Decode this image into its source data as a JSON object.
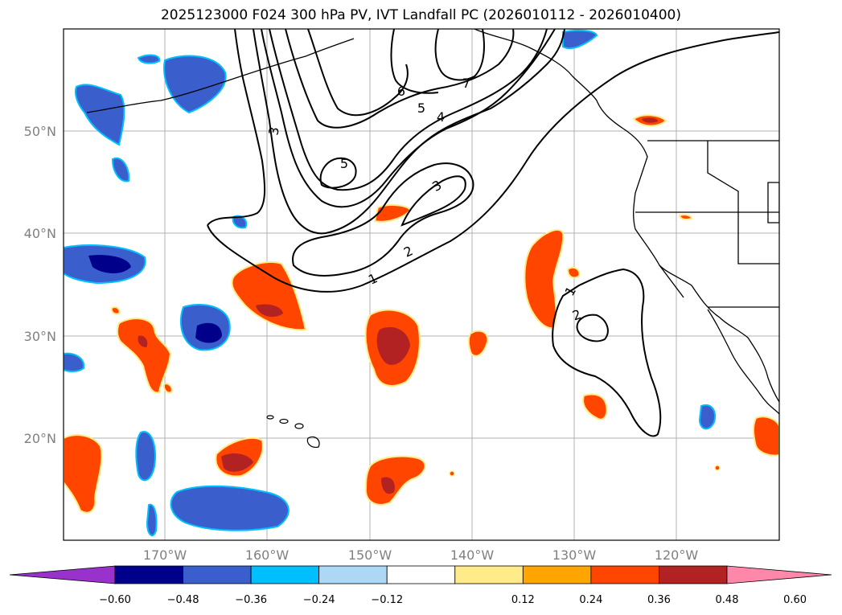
{
  "title": "2025123000 F024 300 hPa PV, IVT Landfall PC (2026010112 - 2026010400)",
  "lat_labels": [
    "50°N",
    "40°N",
    "30°N",
    "20°N"
  ],
  "lon_labels": [
    "170°W",
    "160°W",
    "150°W",
    "140°W",
    "130°W",
    "120°W"
  ],
  "contour_labels": [
    "1",
    "2",
    "3",
    "3",
    "4",
    "5",
    "5",
    "6",
    "7",
    "1",
    "2"
  ],
  "colorbar": {
    "ticks": [
      "−0.60",
      "−0.48",
      "−0.36",
      "−0.24",
      "−0.12",
      "0.12",
      "0.24",
      "0.36",
      "0.48",
      "0.60"
    ],
    "colors": [
      "#9932cc",
      "#00008b",
      "#3a5fcd",
      "#00bfff",
      "#add8f5",
      "#ffffff",
      "#ffeb8a",
      "#ffa500",
      "#ff4500",
      "#b22222",
      "#ff88aa"
    ]
  },
  "colors": {
    "neg_low": "#add8f5",
    "neg_mid": "#00bfff",
    "neg_strong": "#3a5fcd",
    "neg_max": "#00008b",
    "pos_low": "#ffeb8a",
    "pos_mid": "#ffa500",
    "pos_strong": "#ff4500",
    "pos_max": "#b22222",
    "pos_extreme": "#ff88aa"
  }
}
